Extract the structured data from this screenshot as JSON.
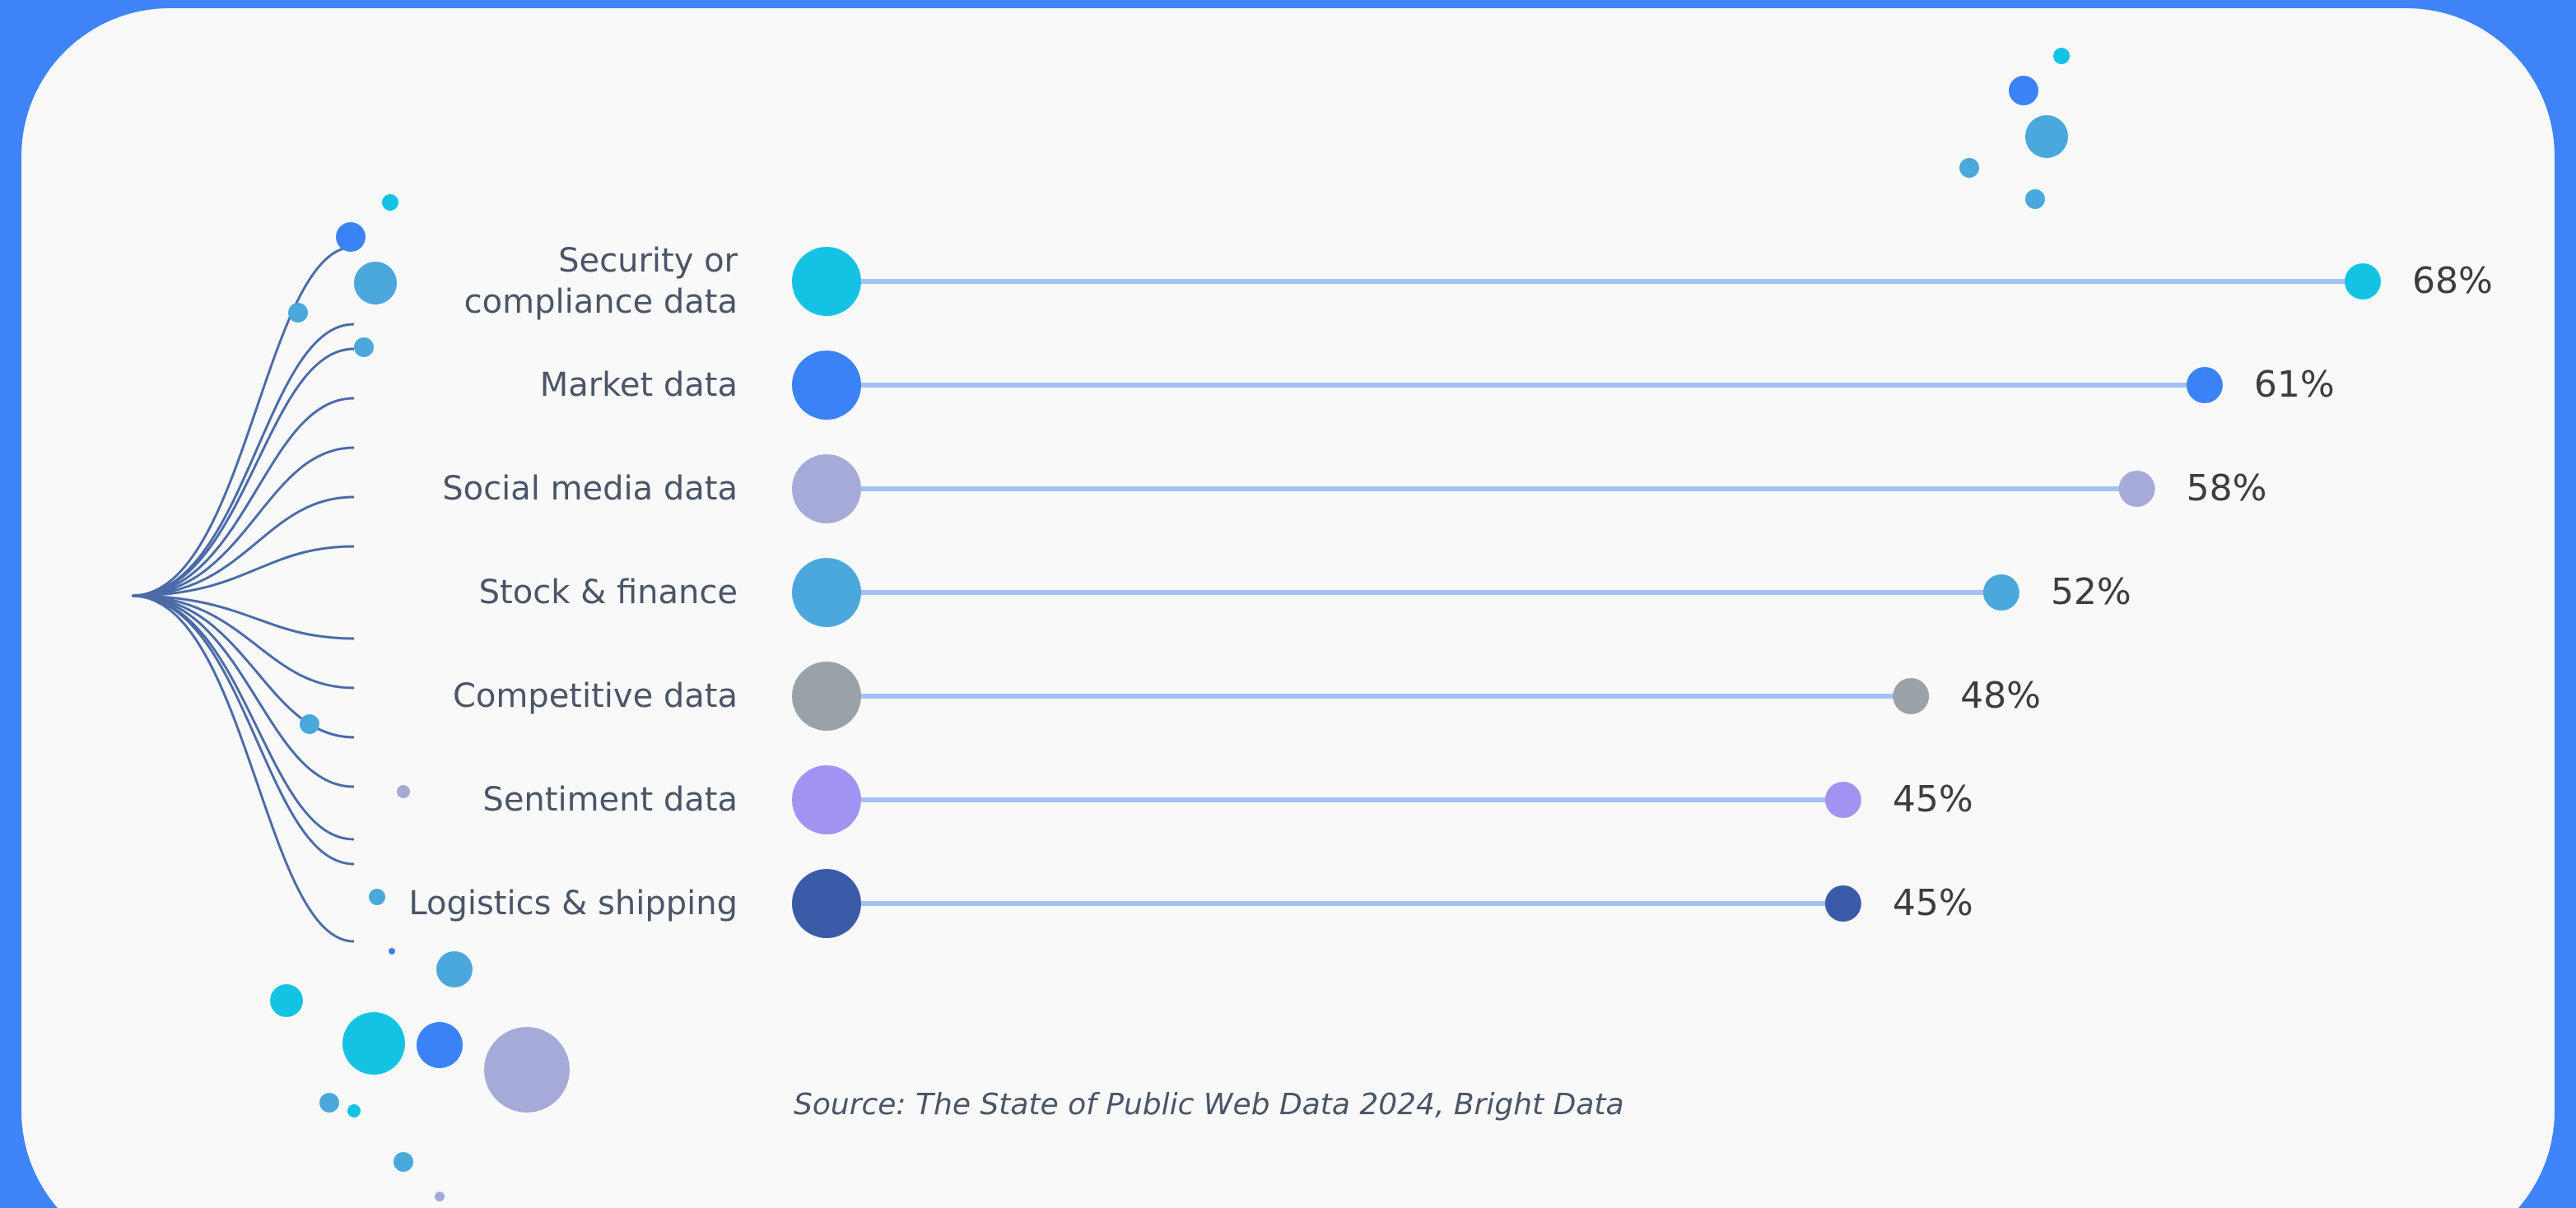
{
  "chart_data": {
    "type": "lollipop",
    "categories": [
      "Security or\ncompliance data",
      "Market data",
      "Social media data",
      "Stock & finance",
      "Competitive data",
      "Sentiment data",
      "Logistics & shipping"
    ],
    "values": [
      68,
      61,
      58,
      52,
      48,
      45,
      45
    ],
    "value_labels": [
      "68%",
      "61%",
      "58%",
      "52%",
      "48%",
      "45%",
      "45%"
    ],
    "colors": [
      "#14c3e4",
      "#3b82f6",
      "#a5aad8",
      "#4aa8dc",
      "#9aa1a9",
      "#a193f2",
      "#3a5ba8"
    ],
    "line_color": "#a3c1f5",
    "source": "Source: The State of Public Web Data 2024, Bright Data"
  }
}
